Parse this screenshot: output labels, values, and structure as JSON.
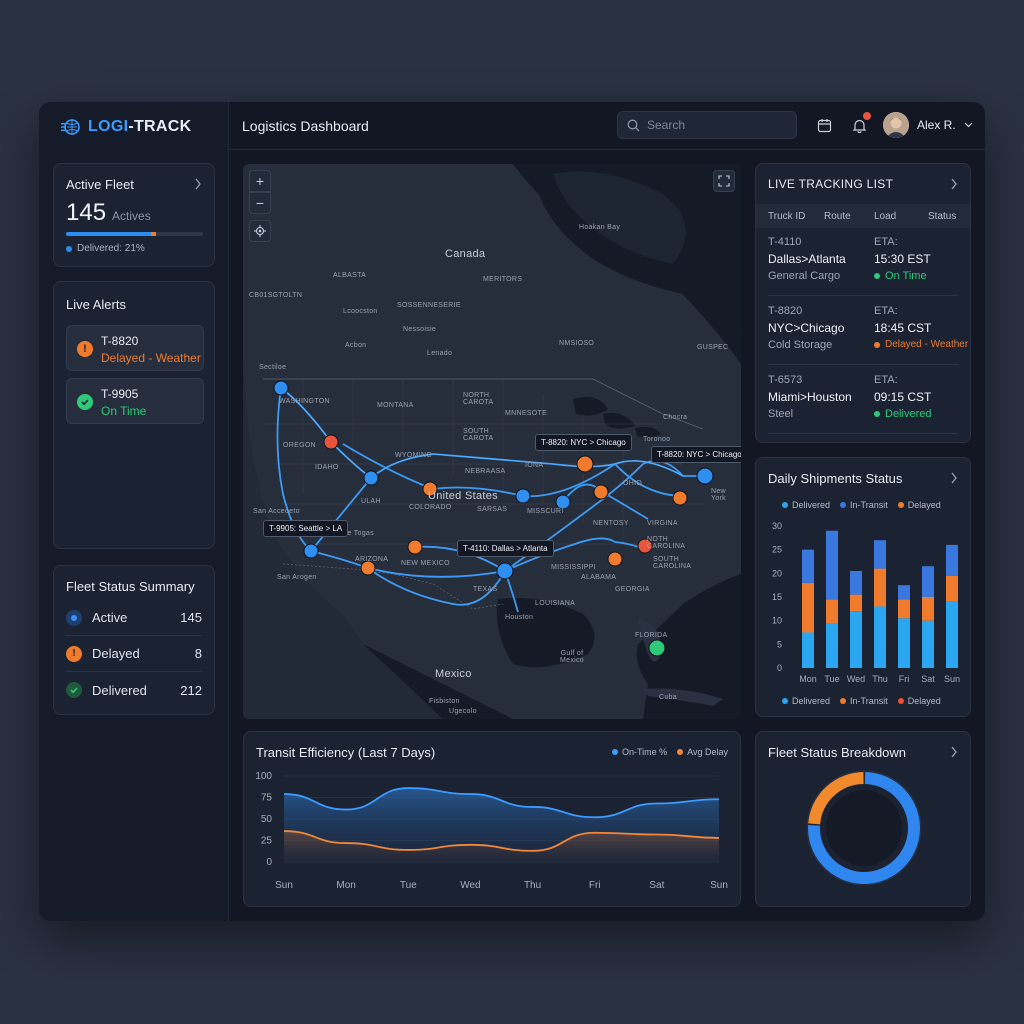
{
  "app": {
    "brand_prefix": "LOGI",
    "brand_suffix": "-TRACK",
    "page_title": "Logistics Dashboard"
  },
  "header": {
    "search_placeholder": "Search",
    "user_name": "Alex R.",
    "icons": [
      "calendar-icon",
      "bell-icon",
      "chevron-down-icon"
    ]
  },
  "active_fleet": {
    "title": "Active Fleet",
    "count": "145",
    "count_label": "Actives",
    "progress_percent": 21,
    "progress_label": "Delivered: 21%"
  },
  "live_alerts": {
    "title": "Live Alerts",
    "items": [
      {
        "id": "T-8820",
        "status": "Delayed - Weather",
        "icon": "alert-icon",
        "color": "#f07b2c"
      },
      {
        "id": "T-9905",
        "status": "On Time",
        "icon": "check-icon",
        "color": "#2fca79"
      }
    ]
  },
  "fleet_status_summary": {
    "title": "Fleet Status Summary",
    "rows": [
      {
        "label": "Active",
        "value": "145",
        "color": "#3b8fff"
      },
      {
        "label": "Delayed",
        "value": "8",
        "color": "#f07b2c"
      },
      {
        "label": "Delivered",
        "value": "212",
        "color": "#2fca79"
      }
    ]
  },
  "map": {
    "controls": [
      "zoom-in",
      "zoom-out",
      "locate",
      "fullscreen"
    ],
    "labels": {
      "canada": "Canada",
      "us": "United States",
      "mexico": "Mexico",
      "hudson": "Hoakan Bay",
      "alberta": "ALBASTA",
      "meritors": "MERITORS",
      "sasko": "SOSSENNESERIE",
      "loopston": "Lcoocston",
      "nessoia": "Nessoisie",
      "acbon": "Acbon",
      "lenado": "Lenado",
      "nmsioso": "NMSIOSO",
      "gusec": "GUSPEC",
      "seattle": "Sectiloe",
      "washington": "WASHINGTON",
      "montana": "MONTANA",
      "ncarota": "NORTH CAROTA",
      "mnnesota": "MNNESOTE",
      "scarota": "SOUTH CAROTA",
      "oregon": "OREGON",
      "wyoming": "WYOMING",
      "nebraska": "NEBRAASA",
      "iona": "IONA",
      "ohio": "OHIO",
      "colorado": "COLORADO",
      "sarsas": "SARSAS",
      "missouri": "MISSCURI",
      "kentucky": "NENTOSY",
      "virginia": "VIRGINA",
      "ncarolina": "NOTH CAROLINA",
      "toronto": "Toronoo",
      "chocra": "Chocra",
      "newyork": "New York",
      "sanaceo": "San Acceoeto",
      "lastogas": "Lae Togas",
      "arizona": "ARIZONA",
      "newmexico": "NEW MEXICO",
      "sanarogen": "San Arogen",
      "texas": "TEXAS",
      "louisiana": "LOUISIANA",
      "mississippi": "MISSISSIPPI",
      "alabama": "ALABAMA",
      "georgia": "GEORGIA",
      "scarolina": "SOUTH CAROLINA",
      "houston": "Houston",
      "florida": "FLORIDA",
      "gulf": "Gulf of Mexico",
      "cuba": "Cuba",
      "mexicanisl": "Fisbiston",
      "ugecolo": "Ugecolo",
      "ulah": "ULAH",
      "idaho": "IDAHO",
      "cbotsgtoltn": "CB01SGTOLTN"
    },
    "tooltips": {
      "t8820a": "T-8820: NYC > Chicago",
      "t8820b": "T-8820: NYC > Chicago",
      "t9905": "T-9905: Seattle > LA",
      "t4110": "T-4110: Dallas > Atlanta"
    }
  },
  "live_tracking": {
    "title": "LIVE TRACKING LIST",
    "columns": [
      "Truck ID",
      "Route",
      "Load",
      "Status"
    ],
    "rows": [
      {
        "id": "T-4110",
        "route": "Dallas>Atlanta",
        "cargo": "General Cargo",
        "eta_label": "ETA:",
        "eta": "15:30 EST",
        "status": "On Time",
        "color": "#2fca79"
      },
      {
        "id": "T-8820",
        "route": "NYC>Chicago",
        "cargo": "Cold Storage",
        "eta_label": "ETA:",
        "eta": "18:45 CST",
        "status": "Delayed - Weather",
        "color": "#f07b2c"
      },
      {
        "id": "T-6573",
        "route": "Miami>Houston",
        "cargo": "Steel",
        "eta_label": "ETA:",
        "eta": "09:15 CST",
        "status": "Delivered",
        "color": "#2fca79"
      }
    ]
  },
  "daily_shipments": {
    "title": "Daily Shipments Status",
    "legend_top": [
      "Delivered",
      "In-Transit",
      "Delayed"
    ],
    "legend_bottom": [
      "Delivered",
      "In-Transit",
      "Delayed"
    ],
    "colors": {
      "delivered": "#2aa7f0",
      "intransit": "#3a78e0",
      "delayed": "#f07b2c",
      "delayed_legend_bottom": "#f0502c"
    }
  },
  "transit_efficiency": {
    "title": "Transit Efficiency (Last 7 Days)",
    "legend": [
      "On-Time %",
      "Avg Delay"
    ],
    "colors": {
      "ontime": "#3b9bff",
      "delay": "#f0883a"
    }
  },
  "fleet_breakdown": {
    "title": "Fleet Status Breakdown"
  },
  "chart_data": [
    {
      "type": "bar",
      "title": "Daily Shipments Status",
      "categories": [
        "Mon",
        "Tue",
        "Wed",
        "Thu",
        "Fri",
        "Sat",
        "Sun"
      ],
      "ylim": [
        0,
        30
      ],
      "yticks": [
        0,
        5,
        10,
        15,
        20,
        25,
        30
      ],
      "stacked": true,
      "series": [
        {
          "name": "Delivered",
          "values": [
            7.5,
            9.5,
            12,
            13,
            10.5,
            10,
            14
          ]
        },
        {
          "name": "Delayed",
          "values": [
            10.5,
            5,
            3.5,
            8,
            4,
            5,
            5.5
          ]
        },
        {
          "name": "In-Transit",
          "values": [
            7,
            14.5,
            5,
            6,
            3,
            6.5,
            6.5
          ]
        }
      ]
    },
    {
      "type": "area",
      "title": "Transit Efficiency (Last 7 Days)",
      "categories": [
        "Sun",
        "Mon",
        "Tue",
        "Wed",
        "Thu",
        "Fri",
        "Sat",
        "Sun"
      ],
      "ylim": [
        0,
        100
      ],
      "yticks": [
        0,
        25,
        50,
        75,
        100
      ],
      "series": [
        {
          "name": "On-Time %",
          "values": [
            79,
            61,
            86,
            79,
            64,
            52,
            68,
            73
          ]
        },
        {
          "name": "Avg Delay",
          "values": [
            36,
            22,
            14,
            20,
            13,
            34,
            32,
            28
          ]
        }
      ]
    },
    {
      "type": "pie",
      "title": "Fleet Status Breakdown",
      "categories": [
        "Active",
        "Delayed"
      ],
      "values": [
        76,
        24
      ]
    }
  ]
}
